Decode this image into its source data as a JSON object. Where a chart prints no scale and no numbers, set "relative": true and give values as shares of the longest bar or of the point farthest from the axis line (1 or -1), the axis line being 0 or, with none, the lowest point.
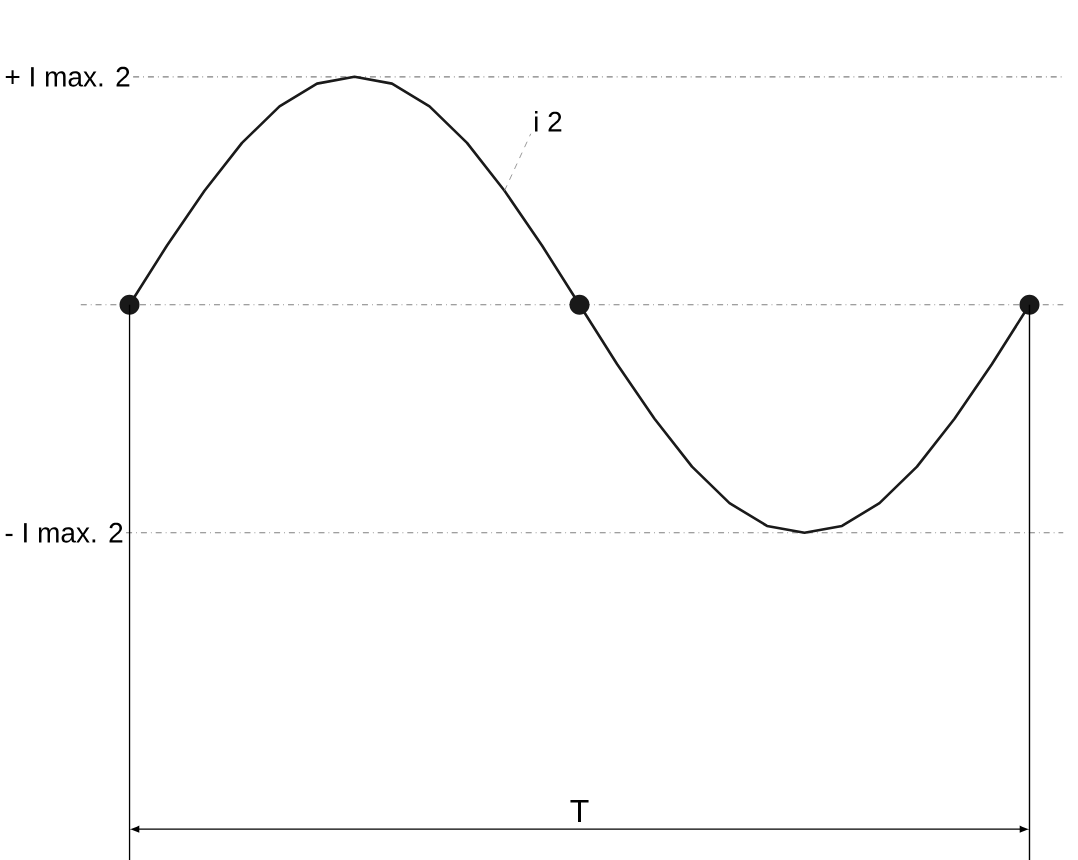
{
  "chart_data": {
    "type": "line",
    "relative": true,
    "categories": [
      null,
      null,
      null,
      null,
      null,
      null,
      null,
      null,
      null,
      null,
      null,
      null,
      null,
      null,
      null,
      null,
      null,
      null,
      null,
      null,
      null,
      null,
      null,
      null,
      null
    ],
    "series": [
      {
        "name": "i 2",
        "color": "#1a1a1a",
        "values": [
          0,
          0.26,
          0.5,
          0.71,
          0.87,
          0.97,
          1,
          0.97,
          0.87,
          0.71,
          0.5,
          0.26,
          0,
          -0.26,
          -0.5,
          -0.71,
          -0.87,
          -0.97,
          -1,
          -0.97,
          -0.87,
          -0.71,
          -0.5,
          -0.26,
          0
        ]
      }
    ],
    "ref_lines": [
      {
        "axis": "y",
        "value": 1,
        "label": "+ I max. 2",
        "line_style": "dashed"
      },
      {
        "axis": "y",
        "value": 0,
        "line_style": "dashed"
      },
      {
        "axis": "y",
        "value": -1,
        "label": "- I max. 2",
        "line_style": "dashed"
      }
    ],
    "annotations": [
      "T"
    ]
  }
}
